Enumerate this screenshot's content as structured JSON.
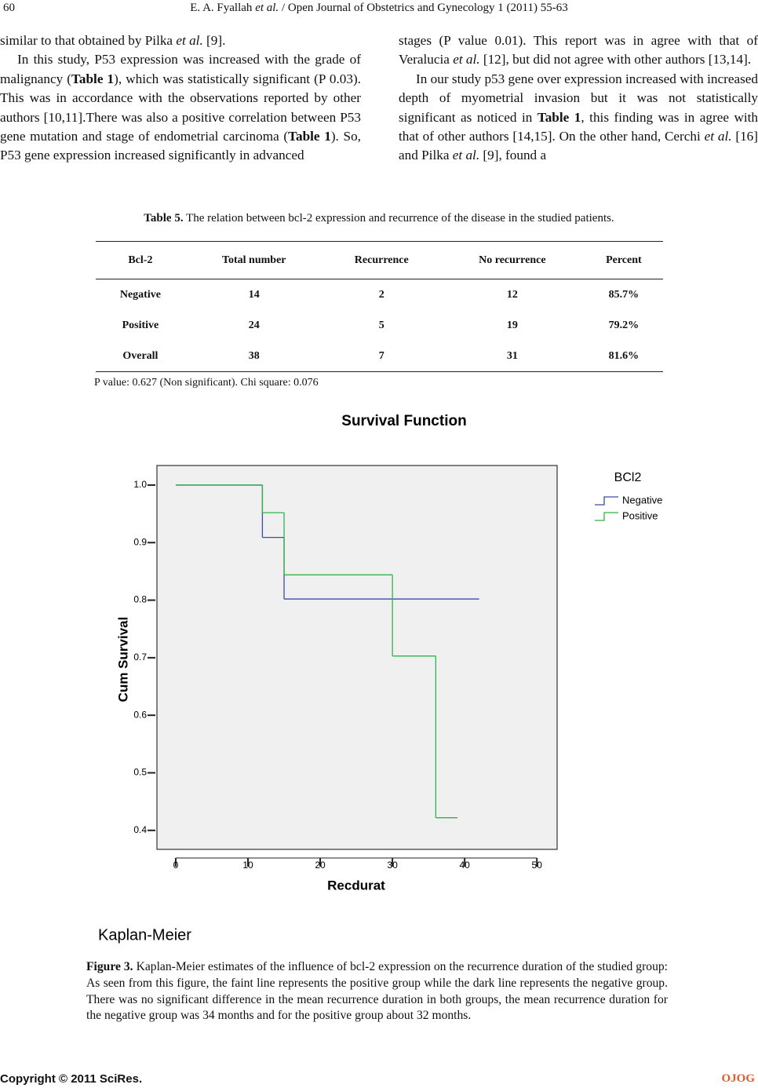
{
  "header": {
    "page_number": "60",
    "authors": "E. A. Fyallah ",
    "et_al": "et al.",
    "journal": " / Open Journal of Obstetrics and Gynecology 1 (2011) 55-63"
  },
  "left_column": [
    [
      "similar to that obtained by Pilka ",
      "et al.",
      " [9]."
    ],
    [
      "In this study, P53 expression was increased with the grade of malignancy (",
      "Table 1",
      "), which was statistically significant (P 0.03). This was in accordance with the observations reported by other authors [10,11].There was also a positive correlation between P53 gene mutation and stage of endometrial carcinoma (",
      "Table 1",
      "). So, P53 gene expression increased significantly in advanced"
    ]
  ],
  "right_column": [
    [
      "stages (P value 0.01). This report was in agree with that of Veralucia ",
      "et al.",
      " [12], but did not agree with other authors [13,14]."
    ],
    [
      "In our study p53 gene over expression increased with increased depth of myometrial invasion but it was not statistically significant as noticed in ",
      "Table 1",
      ", this finding was in agree with that of other authors [14,15]. On the other hand, Cerchi ",
      "et al.",
      " [16] and Pilka ",
      "et al.",
      " [9], found a"
    ]
  ],
  "table": {
    "label": "Table 5.",
    "caption": " The relation between bcl-2 expression and recurrence of the disease in the studied patients.",
    "columns": [
      "Bcl-2",
      "Total number",
      "Recurrence",
      "No recurrence",
      "Percent"
    ],
    "rows": [
      [
        "Negative",
        "14",
        "2",
        "12",
        "85.7%"
      ],
      [
        "Positive",
        "24",
        "5",
        "19",
        "79.2%"
      ],
      [
        "Overall",
        "38",
        "7",
        "31",
        "81.6%"
      ]
    ],
    "note": "P value: 0.627 (Non significant). Chi square: 0.076"
  },
  "chart_data": {
    "type": "step",
    "title": "Survival Function",
    "subtitle": "Kaplan-Meier",
    "x_label": "Recdurat",
    "y_label": "Cum Survival",
    "legend_title": "BCl2",
    "xlim": [
      -2.6,
      52.8
    ],
    "xticks": [
      0,
      10,
      20,
      30,
      40,
      50
    ],
    "ylim": [
      0.367,
      1.034
    ],
    "yticks": [
      {
        "value": 1.0,
        "label": "1.0"
      },
      0.9,
      0.8,
      0.7,
      0.6,
      0.5,
      0.4
    ],
    "series": [
      {
        "name": "Negative",
        "color": "#3b4ea0",
        "x": [
          0,
          12,
          15,
          42
        ],
        "values": [
          1.0,
          0.909,
          0.802,
          0.802
        ]
      },
      {
        "name": "Positive",
        "color": "#2fb449",
        "x": [
          0,
          12,
          15,
          30,
          36,
          39
        ],
        "values": [
          1.0,
          0.952,
          0.844,
          0.703,
          0.422,
          0.422
        ]
      }
    ]
  },
  "figure_caption": {
    "label": "Figure 3.",
    "text": " Kaplan-Meier estimates of the influence of bcl-2 expression on the recurrence duration of the studied group: As seen from this figure, the faint line represents the positive group while the dark line represents the negative group. There was no significant difference in the mean recurrence duration in both groups, the mean recurrence duration for the negative group was 34 months and for the positive group about 32 months."
  },
  "footer": {
    "copyright": "Copyright © 2011 SciRes.",
    "journal": "OJOG"
  }
}
